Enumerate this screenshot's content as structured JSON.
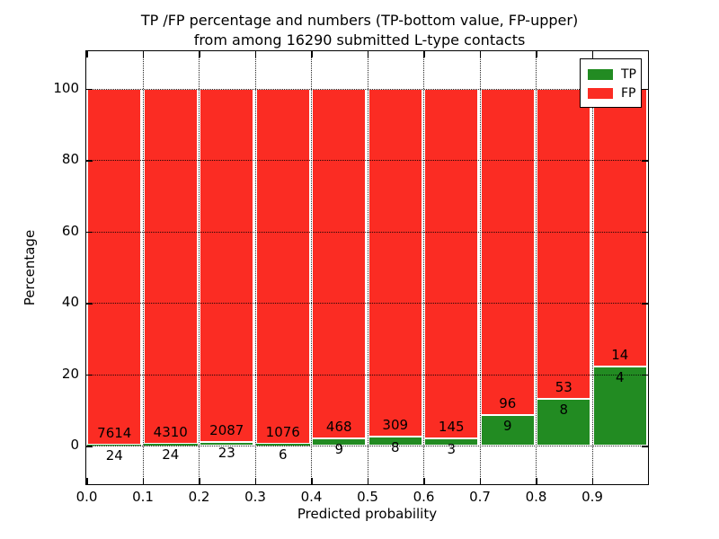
{
  "title": {
    "line1": "TP /FP percentage and numbers (TP-bottom value, FP-upper)",
    "line2": "from among 16290 submitted L-type contacts"
  },
  "axes": {
    "xlabel": "Predicted probability",
    "ylabel": "Percentage",
    "xtick_labels": [
      "0.0",
      "0.1",
      "0.2",
      "0.3",
      "0.4",
      "0.5",
      "0.6",
      "0.7",
      "0.8",
      "0.9"
    ],
    "ytick_values": [
      0,
      20,
      40,
      60,
      80,
      100
    ],
    "xlim": [
      0.0,
      1.0
    ],
    "ylim": [
      -10.8,
      110.5
    ],
    "grid": "dotted"
  },
  "legend": {
    "position": "upper-right",
    "entries": [
      {
        "label": "TP",
        "color": "#228b22"
      },
      {
        "label": "FP",
        "color": "#fb2c23"
      }
    ]
  },
  "colors": {
    "tp": "#228b22",
    "fp": "#fb2c23",
    "bar_edge": "#ffffff",
    "axis": "#000000"
  },
  "chart_data": {
    "type": "bar",
    "stacked": true,
    "normalized_to": 100,
    "bin_starts": [
      0.0,
      0.1,
      0.2,
      0.3,
      0.4,
      0.5,
      0.6,
      0.7,
      0.8,
      0.9
    ],
    "bin_width": 0.1,
    "series": [
      {
        "name": "TP",
        "counts": [
          24,
          24,
          23,
          6,
          9,
          8,
          3,
          9,
          8,
          4
        ],
        "color": "#228b22"
      },
      {
        "name": "FP",
        "counts": [
          7614,
          4310,
          2087,
          1076,
          468,
          309,
          145,
          96,
          53,
          14
        ],
        "color": "#fb2c23"
      }
    ],
    "tp_percent": [
      0.31,
      0.55,
      1.09,
      0.55,
      1.89,
      2.52,
      2.03,
      8.57,
      13.11,
      22.22
    ],
    "fp_percent": [
      99.69,
      99.45,
      98.91,
      99.45,
      98.11,
      97.48,
      97.97,
      91.43,
      86.89,
      77.78
    ],
    "total_contacts": 16290,
    "title": "TP /FP percentage and numbers (TP-bottom value, FP-upper) from among 16290 submitted L-type contacts",
    "xlabel": "Predicted probability",
    "ylabel": "Percentage"
  }
}
